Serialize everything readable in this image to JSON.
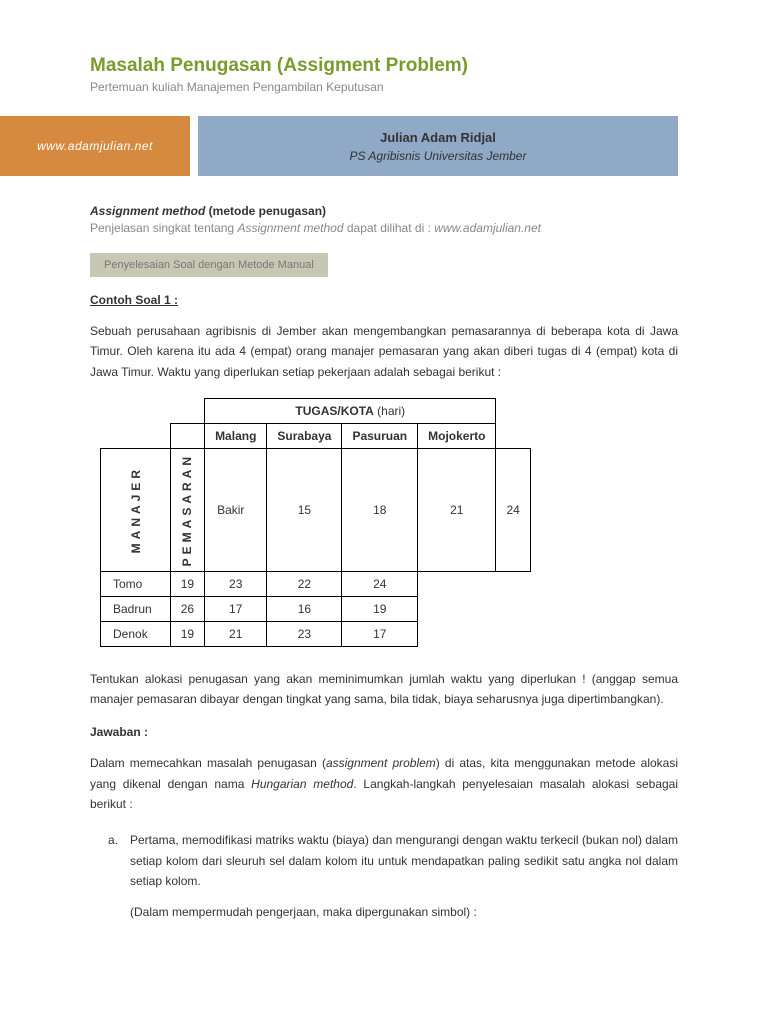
{
  "header": {
    "title": "Masalah Penugasan (Assigment Problem)",
    "subtitle": "Pertemuan kuliah Manajemen Pengambilan Keputusan",
    "website": "www.adamjulian.net",
    "author": "Julian Adam Ridjal",
    "affiliation": "PS Agribisnis Universitas Jember"
  },
  "section": {
    "head_italic": "Assignment method",
    "head_paren": " (metode penugasan)",
    "desc_pre": "Penjelasan singkat tentang ",
    "desc_it": "Assignment method",
    "desc_post": " dapat dilihat di : ",
    "desc_site": "www.adamjulian.net",
    "pill": "Penyelesaian Soal dengan Metode Manual",
    "example_label": "Contoh Soal 1 :",
    "problem_text": "Sebuah perusahaan agribisnis di Jember akan mengembangkan pemasarannya di beberapa kota di Jawa Timur. Oleh karena itu ada 4 (empat) orang manajer pemasaran  yang akan diberi tugas di 4 (empat) kota di Jawa Timur. Waktu yang diperlukan setiap pekerjaan adalah sebagai berikut :"
  },
  "table": {
    "super_header": "TUGAS/KOTA",
    "super_unit": " (hari)",
    "row_label_1": "MANAJER",
    "row_label_2": "PEMASARAN",
    "columns": [
      "Malang",
      "Surabaya",
      "Pasuruan",
      "Mojokerto"
    ],
    "rows": [
      {
        "name": "Bakir",
        "vals": [
          "15",
          "18",
          "21",
          "24"
        ]
      },
      {
        "name": "Tomo",
        "vals": [
          "19",
          "23",
          "22",
          "24"
        ]
      },
      {
        "name": "Badrun",
        "vals": [
          "26",
          "17",
          "16",
          "19"
        ]
      },
      {
        "name": "Denok",
        "vals": [
          "19",
          "21",
          "23",
          "17"
        ]
      }
    ]
  },
  "body": {
    "instruction": "Tentukan alokasi penugasan yang akan meminimumkan jumlah waktu yang diperlukan ! (anggap semua manajer pemasaran dibayar dengan tingkat yang sama, bila tidak, biaya seharusnya juga dipertimbangkan).",
    "answer_label": "Jawaban :",
    "answer_p1_a": "Dalam memecahkan masalah penugasan (",
    "answer_p1_it1": "assignment problem",
    "answer_p1_b": ") di atas, kita menggunakan metode alokasi yang dikenal dengan nama ",
    "answer_p1_it2": "Hungarian method",
    "answer_p1_c": ". Langkah-langkah penyelesaian masalah alokasi sebagai berikut :",
    "step_marker": "a.",
    "step_a": "Pertama, memodifikasi matriks waktu (biaya) dan mengurangi dengan waktu terkecil (bukan nol) dalam setiap kolom dari sleuruh sel dalam kolom itu untuk mendapatkan paling sedikit satu angka nol dalam setiap kolom.",
    "step_note": "(Dalam mempermudah pengerjaan, maka dipergunakan simbol) :"
  },
  "style": {
    "title_color": "#7a9b2e",
    "orange": "#d58a3f",
    "blue": "#8fa9c6",
    "gray_pill": "#c7c8b3",
    "muted": "#888888"
  }
}
